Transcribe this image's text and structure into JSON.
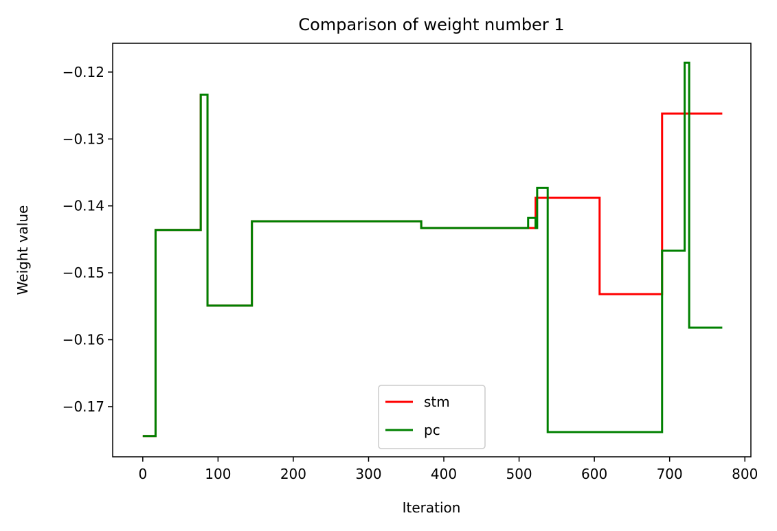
{
  "chart_data": {
    "type": "line",
    "title": "Comparison of weight number 1",
    "xlabel": "Iteration",
    "ylabel": "Weight value",
    "xlim": [
      -40,
      808
    ],
    "ylim": [
      -0.1775,
      -0.1157
    ],
    "xticks": [
      0,
      100,
      200,
      300,
      400,
      500,
      600,
      700,
      800
    ],
    "yticks": [
      -0.17,
      -0.16,
      -0.15,
      -0.14,
      -0.13,
      -0.12
    ],
    "ytick_labels": [
      "−0.17",
      "−0.16",
      "−0.15",
      "−0.14",
      "−0.13",
      "−0.12"
    ],
    "grid": false,
    "legend_position": "lower-center",
    "series": [
      {
        "name": "stm",
        "color": "#ff0000",
        "x": [
          0,
          17,
          17,
          77,
          77,
          83,
          83,
          86,
          86,
          145,
          145,
          370,
          370,
          512,
          512,
          522,
          522,
          607,
          607,
          690,
          690,
          770
        ],
        "y": [
          -0.1744,
          -0.1744,
          -0.1436,
          -0.1436,
          -0.1234,
          -0.1234,
          -0.1234,
          -0.1234,
          -0.1549,
          -0.1549,
          -0.1423,
          -0.1423,
          -0.1433,
          -0.1433,
          -0.1433,
          -0.1433,
          -0.1388,
          -0.1388,
          -0.1532,
          -0.1532,
          -0.1262,
          -0.1262
        ]
      },
      {
        "name": "pc",
        "color": "#008000",
        "x": [
          0,
          17,
          17,
          77,
          77,
          86,
          86,
          145,
          145,
          370,
          370,
          512,
          512,
          522,
          522,
          524,
          524,
          538,
          538,
          690,
          690,
          720,
          720,
          726,
          726,
          770
        ],
        "y": [
          -0.1744,
          -0.1744,
          -0.1436,
          -0.1436,
          -0.1234,
          -0.1234,
          -0.1549,
          -0.1549,
          -0.1423,
          -0.1423,
          -0.1433,
          -0.1433,
          -0.1418,
          -0.1418,
          -0.1433,
          -0.1433,
          -0.1373,
          -0.1373,
          -0.1738,
          -0.1738,
          -0.1467,
          -0.1467,
          -0.1186,
          -0.1186,
          -0.1582,
          -0.1582
        ]
      }
    ]
  }
}
